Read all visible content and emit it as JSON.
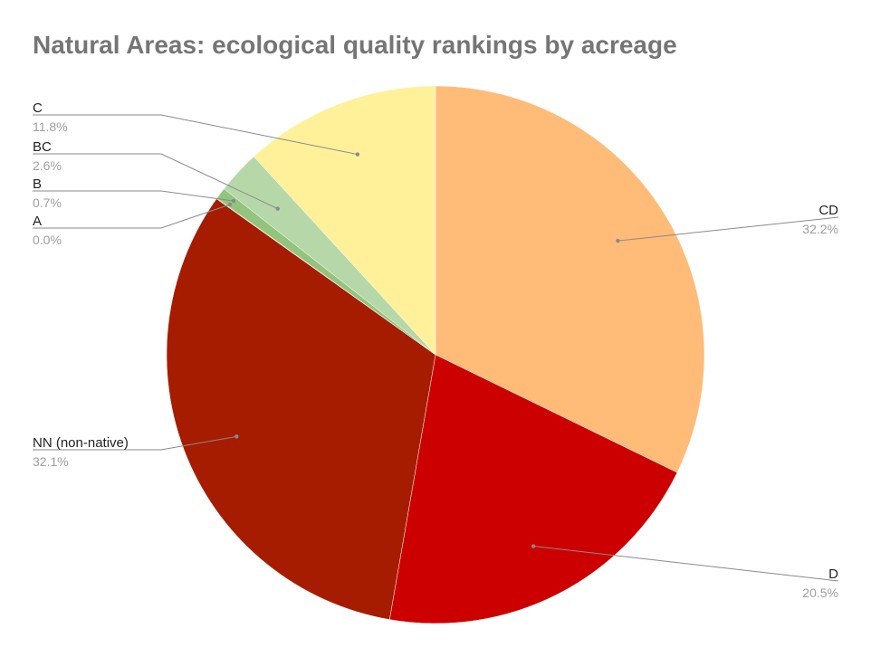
{
  "chart_data": {
    "type": "pie",
    "title": "Natural Areas: ecological quality rankings by acreage",
    "start_angle_deg": 0,
    "direction": "clockwise",
    "slices": [
      {
        "label": "CD",
        "value": 32.2,
        "display": "32.2%",
        "color": "#FFBB78"
      },
      {
        "label": "D",
        "value": 20.5,
        "display": "20.5%",
        "color": "#CC0000"
      },
      {
        "label": "NN (non-native)",
        "value": 32.1,
        "display": "32.1%",
        "color": "#A61C00"
      },
      {
        "label": "A",
        "value": 0.04,
        "display": "0.0%",
        "color": "#6AA84F"
      },
      {
        "label": "B",
        "value": 0.7,
        "display": "0.7%",
        "color": "#93C47D"
      },
      {
        "label": "BC",
        "value": 2.6,
        "display": "2.6%",
        "color": "#B6D7A8"
      },
      {
        "label": "C",
        "value": 11.8,
        "display": "11.8%",
        "color": "#FFF09A"
      }
    ]
  }
}
